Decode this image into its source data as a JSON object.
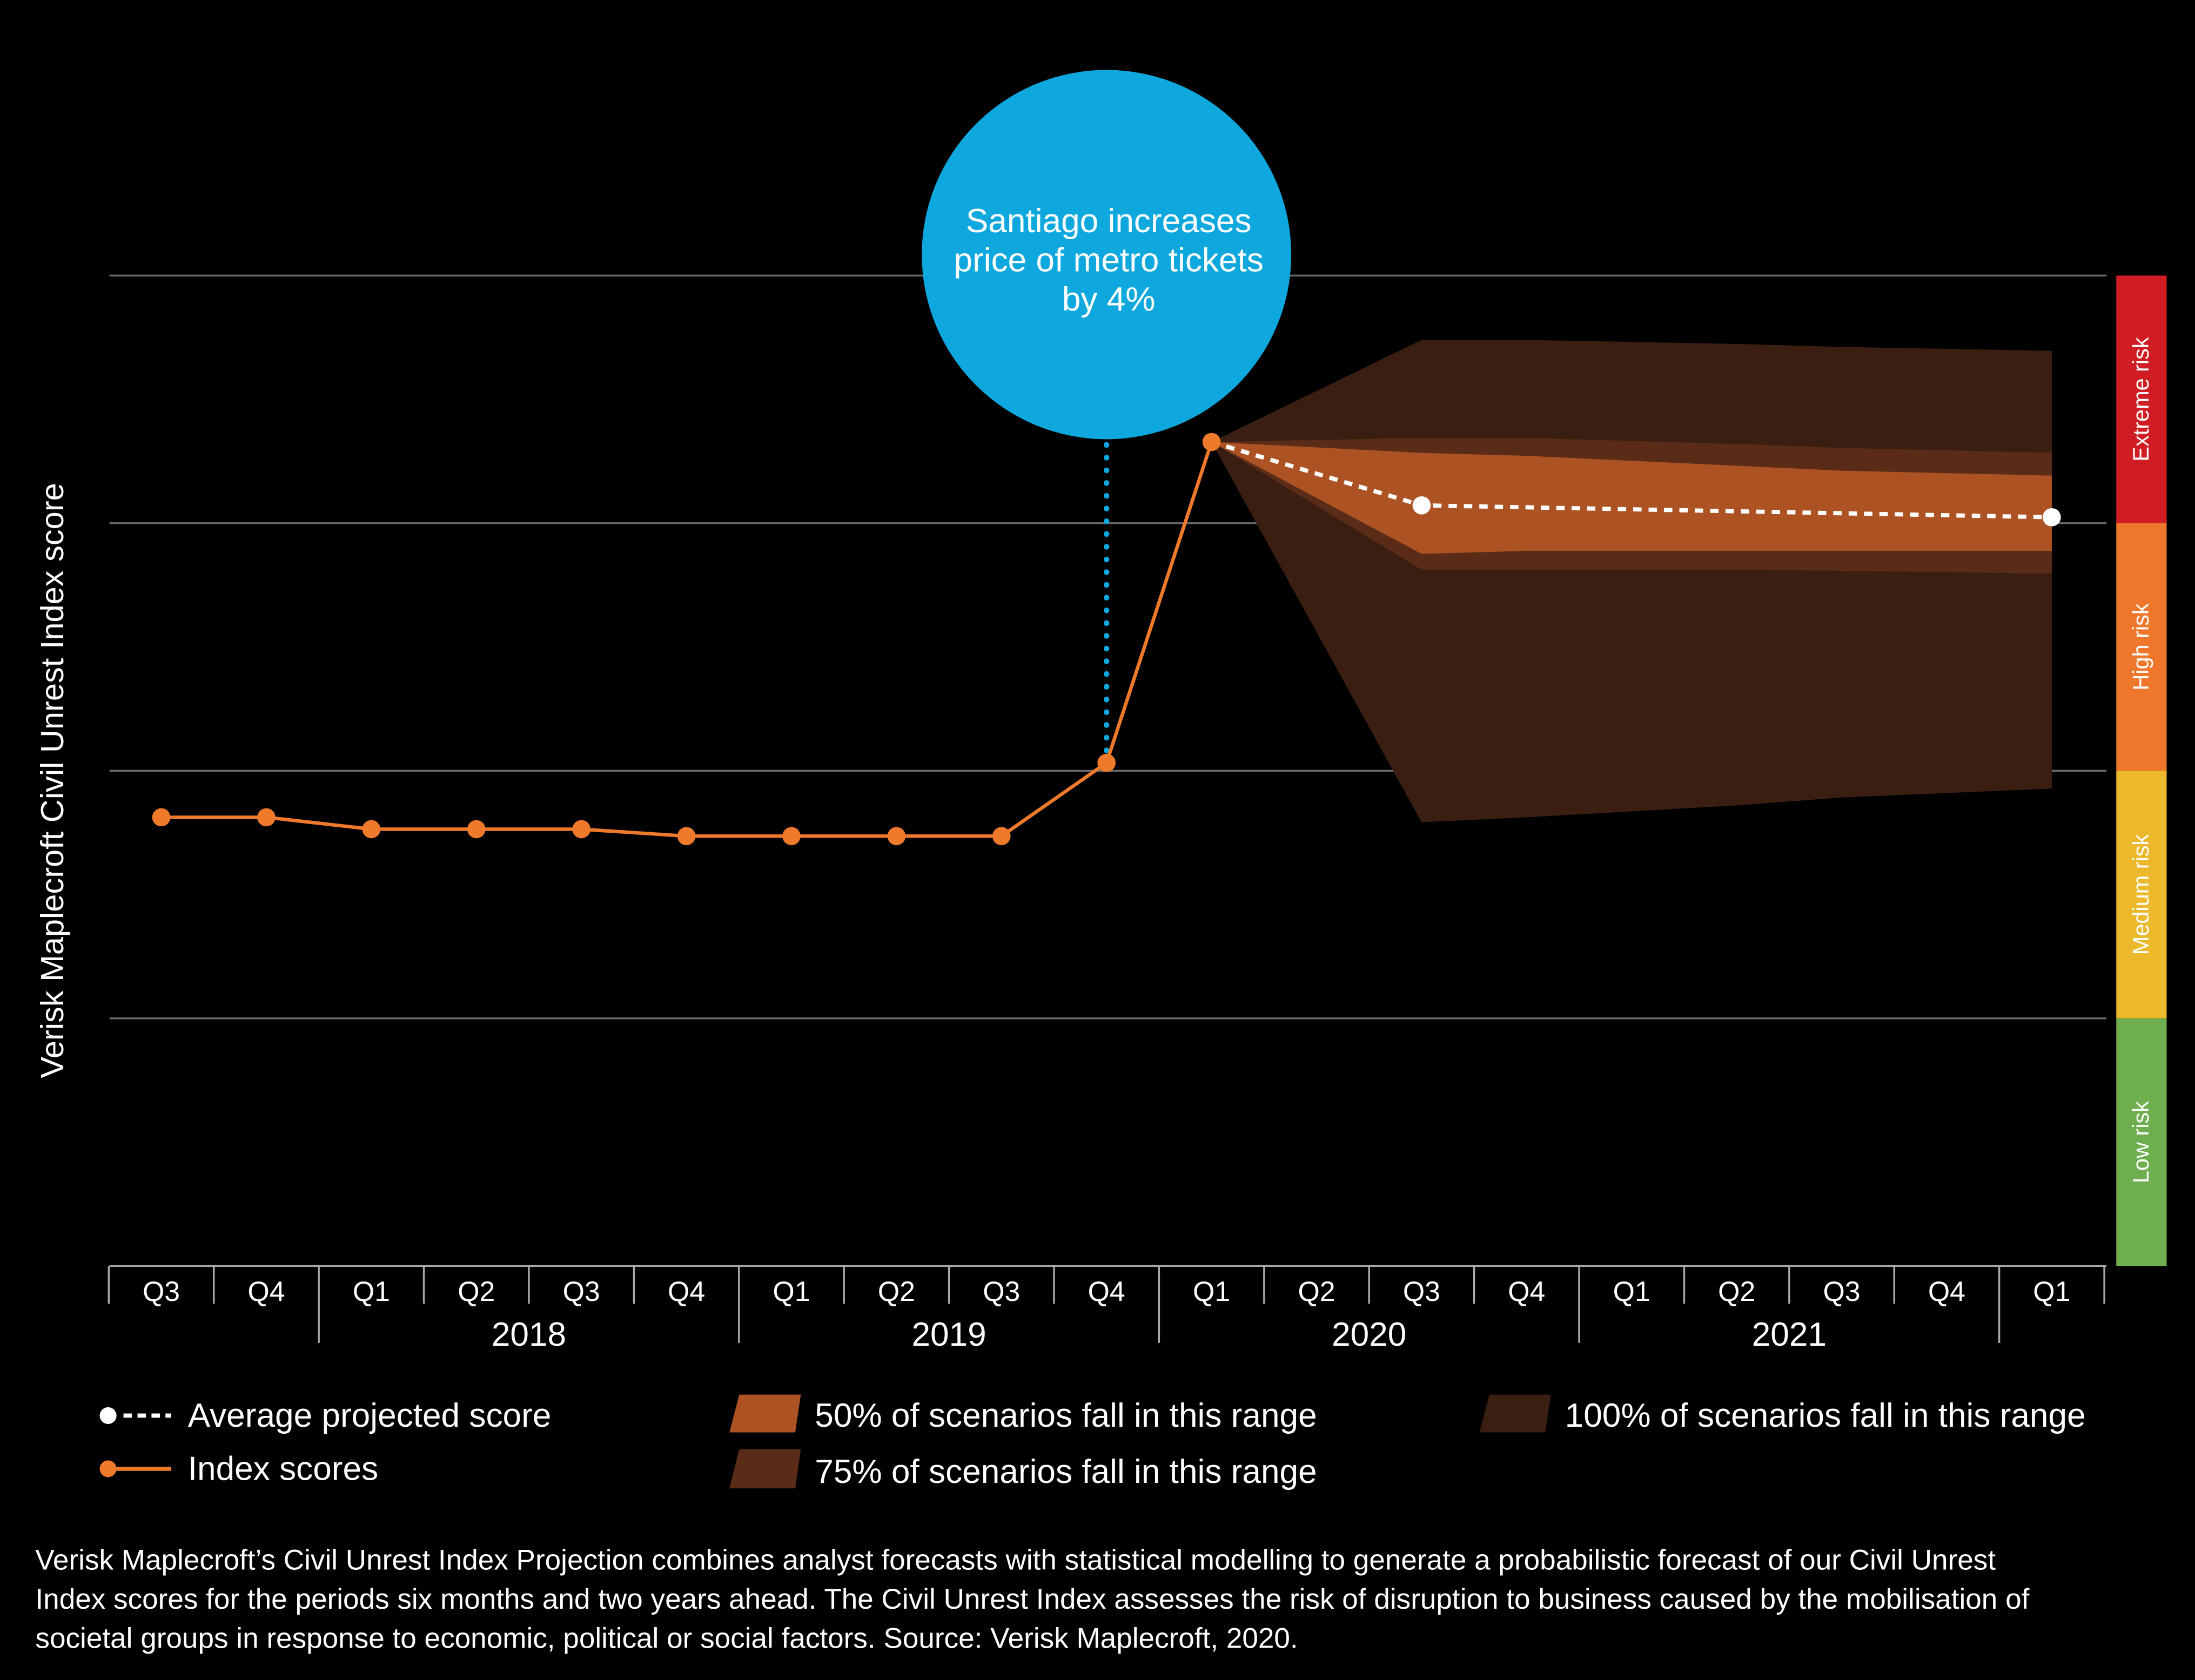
{
  "chart_data": {
    "type": "line",
    "ylabel": "Verisk Maplecroft Civil Unrest Index score",
    "x_ticks": [
      "Q3",
      "Q4",
      "Q1",
      "Q2",
      "Q3",
      "Q4",
      "Q1",
      "Q2",
      "Q3",
      "Q4",
      "Q1",
      "Q2",
      "Q3",
      "Q4",
      "Q1",
      "Q2",
      "Q3",
      "Q4",
      "Q1"
    ],
    "years": [
      "2018",
      "2019",
      "2020",
      "2021"
    ],
    "grid": true,
    "y_tick_labels_shown": false,
    "ylim": [
      0,
      10
    ],
    "risk_bands": [
      {
        "label": "Extreme risk",
        "from": 7.5,
        "to": 10,
        "color": "#D01D23"
      },
      {
        "label": "High risk",
        "from": 5,
        "to": 7.5,
        "color": "#EF772B"
      },
      {
        "label": "Medium risk",
        "from": 2.5,
        "to": 5,
        "color": "#EBB92B"
      },
      {
        "label": "Low risk",
        "from": 0,
        "to": 2.5,
        "color": "#6EAE4F"
      }
    ],
    "series": [
      {
        "name": "Index scores",
        "color": "#EF7A2C",
        "x": [
          0,
          1,
          2,
          3,
          4,
          5,
          6,
          7,
          8,
          9,
          10
        ],
        "y": [
          4.53,
          4.53,
          4.41,
          4.41,
          4.41,
          4.34,
          4.34,
          4.34,
          4.34,
          5.08,
          8.32
        ]
      },
      {
        "name": "Average projected score",
        "color": "#FFFFFF",
        "style": "dashed",
        "x": [
          10,
          12,
          18
        ],
        "y": [
          8.32,
          7.68,
          7.56
        ]
      }
    ],
    "ranges": [
      {
        "name": "100% of scenarios fall in this range",
        "color": "#3A1E12",
        "x": [
          10,
          12,
          13,
          15,
          16,
          18
        ],
        "upper": [
          8.32,
          9.35,
          9.35,
          9.31,
          9.28,
          9.24
        ],
        "lower": [
          8.32,
          4.48,
          4.53,
          4.65,
          4.73,
          4.82
        ]
      },
      {
        "name": "75% of scenarios fall in this range",
        "color": "#5A2C18",
        "x": [
          10,
          12,
          13,
          15,
          16,
          18
        ],
        "upper": [
          8.32,
          8.36,
          8.36,
          8.3,
          8.26,
          8.21
        ],
        "lower": [
          8.32,
          7.03,
          7.03,
          7.03,
          7.02,
          6.99
        ]
      },
      {
        "name": "50% of scenarios fall in this range",
        "color": "#AD5223",
        "x": [
          10,
          12,
          13,
          15,
          16,
          18
        ],
        "upper": [
          8.32,
          8.21,
          8.18,
          8.08,
          8.03,
          7.98
        ],
        "lower": [
          8.32,
          7.19,
          7.22,
          7.22,
          7.22,
          7.22
        ]
      }
    ],
    "annotation": {
      "x": 9,
      "lines": [
        "Santiago increases",
        "price of metro tickets",
        "by 4%"
      ],
      "color": "#0EA8DF"
    }
  },
  "legend": {
    "avg": "Average projected score",
    "index": "Index scores",
    "r50": "50% of scenarios fall in this range",
    "r75": "75% of scenarios fall in this range",
    "r100": "100% of scenarios fall in this range"
  },
  "footnote": [
    "Verisk Maplecroft’s Civil Unrest Index Projection combines analyst forecasts with statistical modelling to generate a probabilistic forecast of our Civil Unrest",
    "Index scores for the periods six months and two years ahead. The Civil Unrest Index assesses the risk of disruption to business caused by the mobilisation of",
    "societal groups in response to economic, political or social factors. Source: Verisk Maplecroft, 2020."
  ]
}
